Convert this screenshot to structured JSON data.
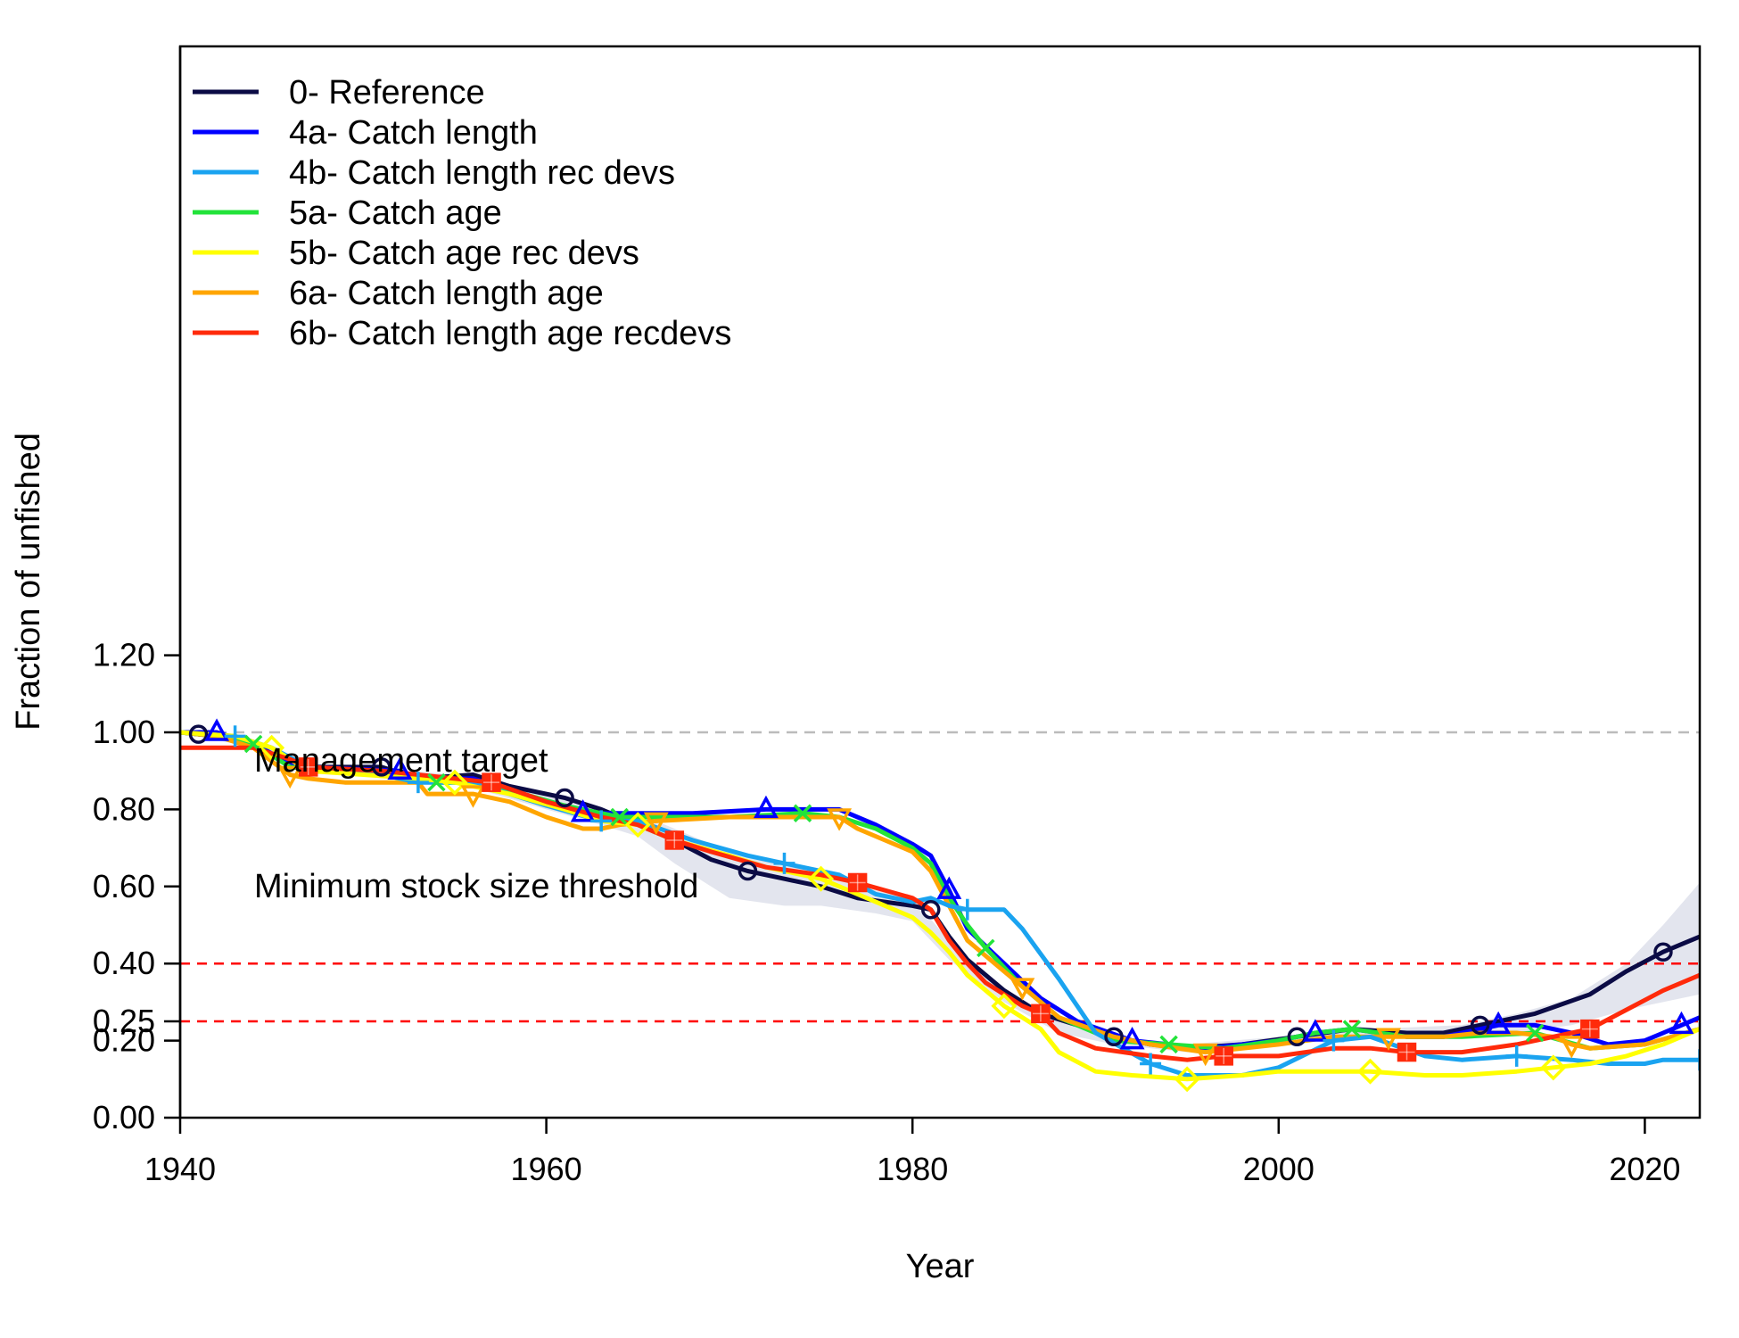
{
  "chart_data": {
    "type": "line",
    "xlabel": "Year",
    "ylabel": "Fraction of unfished",
    "xlim": [
      1940,
      2023
    ],
    "ylim": [
      0,
      1.3
    ],
    "x_ticks": [
      "1940",
      "1960",
      "1980",
      "2000",
      "2020"
    ],
    "y_ticks": [
      "0.00",
      "0.20",
      "0.25",
      "0.40",
      "0.60",
      "0.80",
      "1.00",
      "1.20"
    ],
    "legend_position": "top-left",
    "annotations": [
      {
        "text": "Management target",
        "y": 0.4,
        "color": "#ff0000"
      },
      {
        "text": "Minimum stock size threshold",
        "y": 0.25,
        "color": "#ff0000"
      }
    ],
    "reference_line": {
      "y": 1.0,
      "color": "#bbbbbb"
    },
    "uncertainty_band": {
      "series": "0- Reference",
      "color": "#e3e5ee",
      "x": [
        1940,
        1945,
        1947,
        1950,
        1955,
        1960,
        1963,
        1965,
        1967,
        1970,
        1973,
        1975,
        1978,
        1980,
        1982,
        1985,
        1988,
        1991,
        1995,
        2000,
        2005,
        2010,
        2013,
        2016,
        2019,
        2021,
        2023
      ],
      "upper": [
        1.0,
        0.96,
        0.92,
        0.91,
        0.89,
        0.84,
        0.8,
        0.79,
        0.75,
        0.69,
        0.66,
        0.64,
        0.59,
        0.57,
        0.46,
        0.33,
        0.25,
        0.2,
        0.19,
        0.21,
        0.23,
        0.24,
        0.27,
        0.31,
        0.4,
        0.5,
        0.61
      ],
      "lower": [
        1.0,
        0.95,
        0.9,
        0.9,
        0.87,
        0.8,
        0.76,
        0.73,
        0.66,
        0.57,
        0.55,
        0.55,
        0.53,
        0.51,
        0.41,
        0.3,
        0.22,
        0.19,
        0.17,
        0.19,
        0.21,
        0.21,
        0.22,
        0.24,
        0.28,
        0.3,
        0.32
      ]
    },
    "series": [
      {
        "name": "0- Reference",
        "color": "#0b0b45",
        "marker": "circle",
        "x": [
          1940,
          1942,
          1944,
          1946,
          1947,
          1951,
          1953,
          1956,
          1958,
          1961,
          1963,
          1965,
          1967,
          1969,
          1971,
          1973,
          1975,
          1977,
          1980,
          1981,
          1982,
          1983,
          1985,
          1987,
          1989,
          1991,
          1993,
          1995,
          1998,
          2001,
          2004,
          2007,
          2009,
          2011,
          2014,
          2017,
          2019,
          2021,
          2022,
          2023
        ],
        "y": [
          1.0,
          0.99,
          0.97,
          0.92,
          0.91,
          0.91,
          0.88,
          0.89,
          0.86,
          0.83,
          0.8,
          0.76,
          0.72,
          0.67,
          0.64,
          0.62,
          0.6,
          0.57,
          0.55,
          0.54,
          0.47,
          0.41,
          0.33,
          0.27,
          0.24,
          0.21,
          0.19,
          0.18,
          0.19,
          0.21,
          0.23,
          0.22,
          0.22,
          0.24,
          0.27,
          0.32,
          0.38,
          0.43,
          0.45,
          0.47
        ],
        "markers_x": [
          1941,
          1951,
          1961,
          1971,
          1981,
          1991,
          2001,
          2011,
          2021
        ]
      },
      {
        "name": "4a- Catch length",
        "color": "#0000ff",
        "marker": "triangle",
        "x": [
          1940,
          1942,
          1944,
          1946,
          1947,
          1952,
          1953,
          1956,
          1958,
          1960,
          1962,
          1965,
          1968,
          1972,
          1976,
          1978,
          1980,
          1981,
          1982,
          1983,
          1985,
          1987,
          1989,
          1992,
          1994,
          1996,
          2000,
          2002,
          2004,
          2007,
          2009,
          2012,
          2014,
          2016,
          2018,
          2020,
          2021,
          2022,
          2023
        ],
        "y": [
          1.0,
          1.0,
          0.97,
          0.92,
          0.91,
          0.9,
          0.88,
          0.88,
          0.85,
          0.82,
          0.79,
          0.79,
          0.79,
          0.8,
          0.8,
          0.76,
          0.71,
          0.68,
          0.59,
          0.49,
          0.4,
          0.31,
          0.25,
          0.2,
          0.19,
          0.18,
          0.2,
          0.22,
          0.23,
          0.21,
          0.21,
          0.24,
          0.24,
          0.22,
          0.19,
          0.2,
          0.22,
          0.24,
          0.26
        ],
        "markers_x": [
          1942,
          1952,
          1962,
          1972,
          1982,
          1992,
          2002,
          2012,
          2022
        ]
      },
      {
        "name": "4b- Catch length rec devs",
        "color": "#1aa3f0",
        "marker": "plus",
        "x": [
          1940,
          1943,
          1945,
          1947,
          1950,
          1953,
          1956,
          1960,
          1963,
          1965,
          1968,
          1971,
          1973,
          1976,
          1978,
          1980,
          1981,
          1982,
          1983,
          1985,
          1986,
          1988,
          1990,
          1993,
          1995,
          1998,
          2000,
          2003,
          2005,
          2008,
          2010,
          2013,
          2016,
          2018,
          2020,
          2021,
          2022,
          2023
        ],
        "y": [
          1.0,
          0.99,
          0.96,
          0.91,
          0.9,
          0.87,
          0.87,
          0.81,
          0.77,
          0.77,
          0.72,
          0.68,
          0.66,
          0.63,
          0.58,
          0.56,
          0.57,
          0.55,
          0.54,
          0.54,
          0.49,
          0.36,
          0.22,
          0.14,
          0.11,
          0.11,
          0.13,
          0.2,
          0.21,
          0.16,
          0.15,
          0.16,
          0.15,
          0.14,
          0.14,
          0.15,
          0.15,
          0.15
        ],
        "markers_x": [
          1943,
          1953,
          1963,
          1973,
          1983,
          1993,
          2003,
          2013,
          2023
        ]
      },
      {
        "name": "5a- Catch age",
        "color": "#22e33a",
        "marker": "cross",
        "x": [
          1940,
          1942,
          1944,
          1946,
          1948,
          1951,
          1954,
          1956,
          1958,
          1961,
          1964,
          1967,
          1970,
          1974,
          1976,
          1978,
          1980,
          1981,
          1982,
          1983,
          1984,
          1986,
          1988,
          1991,
          1994,
          1997,
          2000,
          2002,
          2004,
          2007,
          2010,
          2014,
          2017,
          2020,
          2023
        ],
        "y": [
          1.0,
          0.99,
          0.97,
          0.91,
          0.9,
          0.9,
          0.87,
          0.87,
          0.85,
          0.81,
          0.78,
          0.78,
          0.78,
          0.79,
          0.78,
          0.75,
          0.7,
          0.66,
          0.57,
          0.5,
          0.44,
          0.34,
          0.26,
          0.2,
          0.19,
          0.18,
          0.2,
          0.22,
          0.23,
          0.21,
          0.21,
          0.22,
          0.18,
          0.19,
          0.23
        ],
        "markers_x": [
          1944,
          1954,
          1964,
          1974,
          1984,
          1994,
          2004,
          2014
        ]
      },
      {
        "name": "5b- Catch age rec devs",
        "color": "#ffff00",
        "marker": "diamond",
        "x": [
          1940,
          1943,
          1945,
          1946,
          1947,
          1950,
          1953,
          1955,
          1958,
          1961,
          1963,
          1965,
          1967,
          1970,
          1972,
          1975,
          1977,
          1980,
          1981,
          1982,
          1983,
          1985,
          1987,
          1988,
          1990,
          1992,
          1995,
          1998,
          2000,
          2003,
          2005,
          2008,
          2010,
          2013,
          2015,
          2017,
          2019,
          2021,
          2023
        ],
        "y": [
          1.0,
          0.99,
          0.96,
          0.93,
          0.9,
          0.89,
          0.88,
          0.87,
          0.84,
          0.8,
          0.77,
          0.76,
          0.72,
          0.68,
          0.65,
          0.62,
          0.58,
          0.52,
          0.48,
          0.43,
          0.37,
          0.29,
          0.23,
          0.17,
          0.12,
          0.11,
          0.1,
          0.11,
          0.12,
          0.12,
          0.12,
          0.11,
          0.11,
          0.12,
          0.13,
          0.14,
          0.16,
          0.19,
          0.23
        ],
        "markers_x": [
          1945,
          1955,
          1965,
          1975,
          1985,
          1995,
          2005,
          2015
        ]
      },
      {
        "name": "6a- Catch length age",
        "color": "#ffa500",
        "marker": "triangle-down",
        "x": [
          1940,
          1942,
          1944,
          1946,
          1947,
          1949,
          1953,
          1953.5,
          1956,
          1958,
          1960,
          1962,
          1963,
          1964,
          1966,
          1970,
          1976,
          1977,
          1980,
          1981,
          1982,
          1983,
          1984,
          1986,
          1988,
          1991,
          1993,
          1996,
          2000,
          2003,
          2006,
          2009,
          2011,
          2013,
          2015,
          2016,
          2017,
          2020,
          2023
        ],
        "y": [
          1.0,
          0.99,
          0.96,
          0.89,
          0.88,
          0.87,
          0.87,
          0.84,
          0.84,
          0.82,
          0.78,
          0.75,
          0.75,
          0.76,
          0.77,
          0.78,
          0.78,
          0.75,
          0.69,
          0.64,
          0.55,
          0.46,
          0.42,
          0.34,
          0.26,
          0.21,
          0.19,
          0.17,
          0.19,
          0.21,
          0.21,
          0.21,
          0.22,
          0.22,
          0.21,
          0.19,
          0.18,
          0.19,
          0.23
        ],
        "markers_x": [
          1946,
          1956,
          1966,
          1976,
          1986,
          1996,
          2006,
          2016
        ]
      },
      {
        "name": "6b- Catch length age recdevs",
        "color": "#ff2a0a",
        "marker": "square",
        "x": [
          1940,
          1942,
          1944,
          1946,
          1947,
          1951,
          1953,
          1957,
          1960,
          1963,
          1965,
          1967,
          1969,
          1972,
          1975,
          1977,
          1980,
          1981,
          1982,
          1983,
          1984,
          1986,
          1987,
          1988,
          1990,
          1993,
          1995,
          1997,
          2000,
          2003,
          2005,
          2007,
          2010,
          2013,
          2016,
          2017,
          2019,
          2021,
          2023
        ],
        "y": [
          0.96,
          0.96,
          0.96,
          0.93,
          0.91,
          0.9,
          0.89,
          0.87,
          0.82,
          0.78,
          0.76,
          0.72,
          0.69,
          0.65,
          0.63,
          0.61,
          0.57,
          0.54,
          0.46,
          0.4,
          0.35,
          0.29,
          0.27,
          0.22,
          0.18,
          0.16,
          0.15,
          0.16,
          0.16,
          0.18,
          0.18,
          0.17,
          0.17,
          0.19,
          0.22,
          0.23,
          0.28,
          0.33,
          0.37
        ],
        "markers_x": [
          1947,
          1957,
          1967,
          1977,
          1987,
          1997,
          2007,
          2017
        ]
      }
    ]
  }
}
